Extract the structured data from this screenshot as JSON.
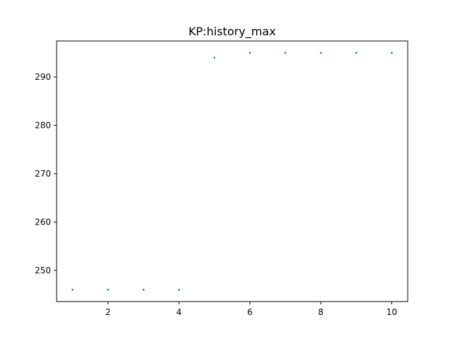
{
  "chart_data": {
    "type": "scatter",
    "title": "KP:history_max",
    "xlabel": "",
    "ylabel": "",
    "x": [
      1,
      2,
      3,
      4,
      5,
      6,
      7,
      8,
      9,
      10
    ],
    "y": [
      246,
      246,
      246,
      246,
      294,
      295,
      295,
      295,
      295,
      295
    ],
    "xlim": [
      0.55,
      10.45
    ],
    "ylim": [
      243.55,
      297.45
    ],
    "xticks": [
      2,
      4,
      6,
      8,
      10
    ],
    "yticks": [
      250,
      260,
      270,
      280,
      290
    ],
    "grid": false,
    "point_color": "#1f77b4"
  }
}
